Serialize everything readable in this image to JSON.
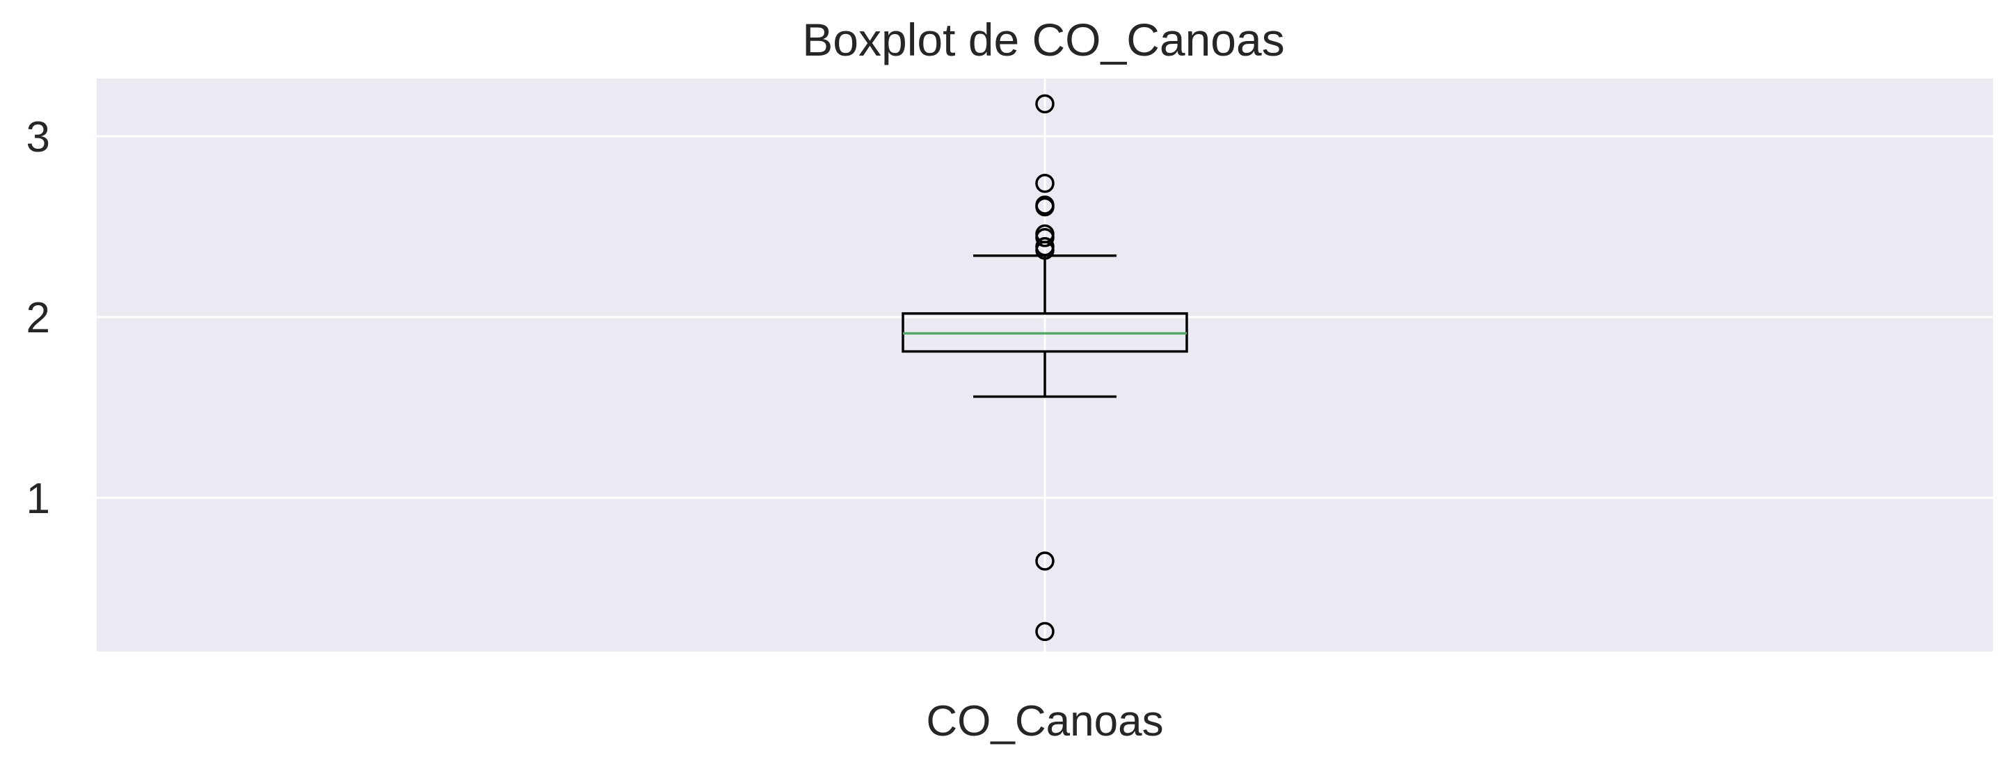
{
  "chart_data": {
    "type": "boxplot",
    "title": "Boxplot de CO_Canoas",
    "xlabel": "",
    "ylabel": "",
    "categories": [
      "CO_Canoas"
    ],
    "yticks": [
      1,
      2,
      3
    ],
    "ytick_labels": [
      "1",
      "2",
      "3"
    ],
    "ylim": [
      0.15,
      3.32
    ],
    "grid": true,
    "boxes": [
      {
        "category": "CO_Canoas",
        "whisker_low": 1.56,
        "q1": 1.81,
        "median": 1.91,
        "q3": 2.02,
        "whisker_high": 2.34,
        "outliers": [
          0.26,
          0.65,
          2.37,
          2.39,
          2.44,
          2.46,
          2.61,
          2.62,
          2.74,
          3.18
        ]
      }
    ],
    "colors": {
      "plot_background": "#eaeaf2",
      "grid": "#ffffff",
      "box_edge": "#000000",
      "median": "#55a868",
      "outlier_edge": "#000000",
      "text": "#262626"
    }
  }
}
